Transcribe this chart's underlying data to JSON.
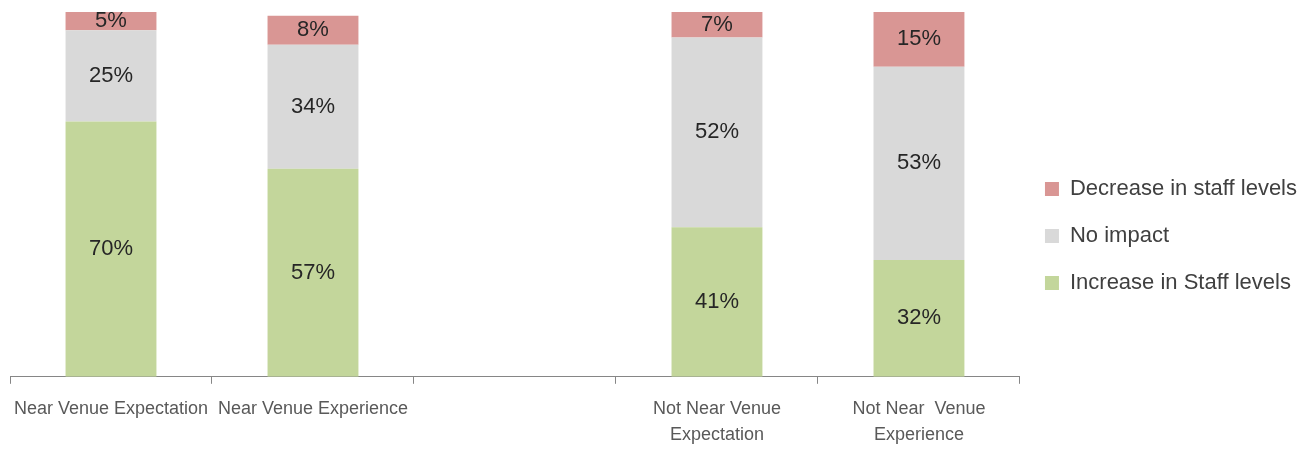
{
  "chart_data": {
    "type": "bar",
    "stacked": true,
    "categories": [
      "Near Venue Expectation",
      "Near Venue Experience",
      null,
      "Not Near Venue Expectation",
      "Not Near  Venue Experience"
    ],
    "series": [
      {
        "name": "Increase in Staff levels",
        "color": "#c3d69b",
        "values": [
          70,
          57,
          null,
          41,
          32
        ],
        "value_labels": [
          "70%",
          "57%",
          null,
          "41%",
          "32%"
        ]
      },
      {
        "name": "No impact",
        "color": "#d9d9d9",
        "values": [
          25,
          34,
          null,
          52,
          53
        ],
        "value_labels": [
          "25%",
          "34%",
          null,
          "52%",
          "53%"
        ]
      },
      {
        "name": "Decrease in staff levels",
        "color": "#d99694",
        "values": [
          5,
          8,
          null,
          7,
          15
        ],
        "value_labels": [
          "5%",
          "8%",
          null,
          "7%",
          "15%"
        ]
      }
    ],
    "ylim": [
      0,
      100
    ],
    "grid": false,
    "legend": "right",
    "tick_labels": "x"
  }
}
